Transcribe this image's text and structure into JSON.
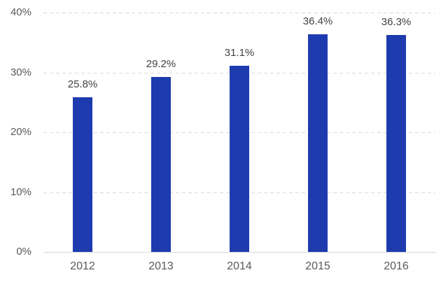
{
  "chart_data": {
    "type": "bar",
    "title": "",
    "xlabel": "",
    "ylabel": "",
    "categories": [
      "2012",
      "2013",
      "2014",
      "2015",
      "2016"
    ],
    "values": [
      25.8,
      29.2,
      31.1,
      36.4,
      36.3
    ],
    "data_labels": [
      "25.8%",
      "29.2%",
      "31.1%",
      "36.4%",
      "36.3%"
    ],
    "ylim": [
      0,
      40
    ],
    "ytick_step": 10,
    "ytick_labels": [
      "0%",
      "10%",
      "20%",
      "30%",
      "40%"
    ],
    "grid": "horizontal-dashed",
    "legend": "none",
    "colors": {
      "bar": "#1d3bae",
      "gridline": "#d9d9d9",
      "baseline": "#d6d6d6",
      "axis_label": "#595959",
      "data_label": "#404040",
      "background": "#ffffff"
    }
  }
}
